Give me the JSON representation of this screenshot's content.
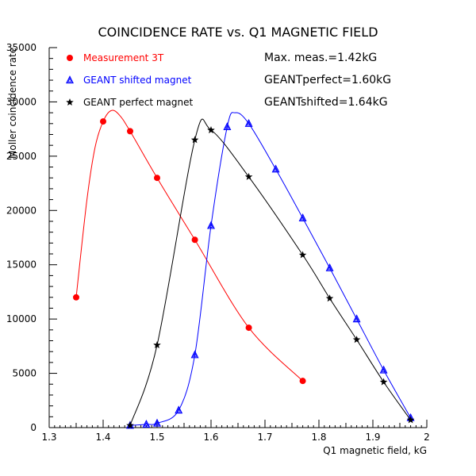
{
  "chart_data": {
    "type": "line",
    "title": "COINCIDENCE RATE vs. Q1 MAGNETIC FIELD",
    "xlabel": "Q1 magnetic field, kG",
    "ylabel": "Moller coincidence rate",
    "xlim": [
      1.3,
      2.0
    ],
    "ylim": [
      0,
      35000
    ],
    "x_ticks": [
      "1.3",
      "1.4",
      "1.5",
      "1.6",
      "1.7",
      "1.8",
      "1.9",
      "2"
    ],
    "y_ticks": [
      "0",
      "5000",
      "10000",
      "15000",
      "20000",
      "25000",
      "30000",
      "35000"
    ],
    "grid": false,
    "legend_position": "top-left",
    "series": [
      {
        "name": "Measurement 3T",
        "color": "#ff0000",
        "marker": "circle",
        "x": [
          1.35,
          1.4,
          1.45,
          1.5,
          1.57,
          1.67,
          1.77
        ],
        "y": [
          12000,
          28200,
          27300,
          23000,
          17300,
          9200,
          4300
        ],
        "curve_x": [
          1.35,
          1.37,
          1.385,
          1.4,
          1.415,
          1.43,
          1.45,
          1.5,
          1.57,
          1.67,
          1.77
        ],
        "curve_y": [
          12000,
          21000,
          25800,
          28200,
          29200,
          28800,
          27300,
          23000,
          17300,
          9200,
          4300
        ]
      },
      {
        "name": "GEANT shifted magnet",
        "color": "#0000ff",
        "marker": "triangle",
        "x": [
          1.45,
          1.48,
          1.5,
          1.54,
          1.57,
          1.6,
          1.63,
          1.67,
          1.72,
          1.77,
          1.82,
          1.87,
          1.92,
          1.97
        ],
        "y": [
          200,
          300,
          400,
          1600,
          6700,
          18600,
          27700,
          28000,
          23800,
          19300,
          14700,
          10000,
          5300,
          900
        ],
        "curve_x": [
          1.45,
          1.48,
          1.5,
          1.54,
          1.57,
          1.6,
          1.63,
          1.645,
          1.67,
          1.72,
          1.77,
          1.82,
          1.87,
          1.92,
          1.97
        ],
        "curve_y": [
          200,
          300,
          400,
          1600,
          6700,
          18600,
          27700,
          29000,
          28000,
          23800,
          19300,
          14700,
          10000,
          5300,
          900
        ]
      },
      {
        "name": "GEANT perfect magnet",
        "color": "#000000",
        "marker": "star",
        "x": [
          1.45,
          1.5,
          1.57,
          1.6,
          1.67,
          1.77,
          1.82,
          1.87,
          1.92,
          1.97
        ],
        "y": [
          200,
          7600,
          26500,
          27400,
          23100,
          15900,
          11900,
          8100,
          4200,
          700
        ],
        "curve_x": [
          1.45,
          1.5,
          1.57,
          1.6,
          1.67,
          1.77,
          1.82,
          1.87,
          1.92,
          1.97
        ],
        "curve_y": [
          200,
          7600,
          26500,
          27400,
          23100,
          15900,
          11900,
          8100,
          4200,
          700
        ]
      }
    ],
    "annotations": [
      "Max. meas.=1.42kG",
      "GEANTperfect=1.60kG",
      "GEANTshifted=1.64kG"
    ]
  }
}
